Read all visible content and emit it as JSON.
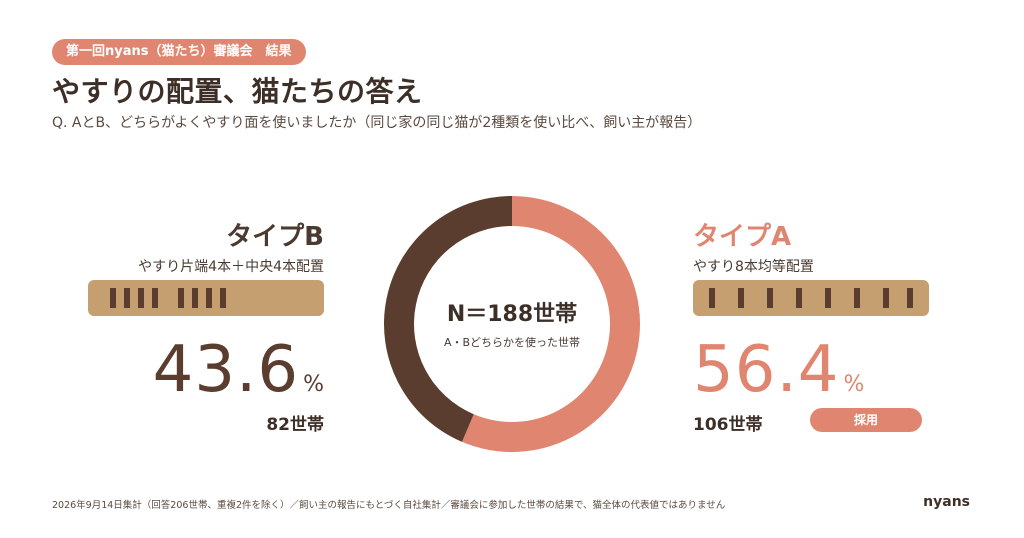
{
  "header": {
    "badge": "第一回nyans（猫たち）審議会　結果",
    "title": "やすりの配置、猫たちの答え",
    "subtitle": "Q. AとB、どちらがよくやすり面を使いましたか（同じ家の同じ猫が2種類を使い比べ、飼い主が報告）"
  },
  "type_b": {
    "title": "タイプB",
    "desc": "やすり片端4本＋中央4本配置",
    "percent": "43.6",
    "unit": "%",
    "households": "82世帯"
  },
  "type_a": {
    "title": "タイプA",
    "desc": "やすり8本均等配置",
    "percent": "56.4",
    "unit": "%",
    "households": "106世帯",
    "badge": "採用"
  },
  "center": {
    "main": "N＝188世帯",
    "sub": "A・Bどちらかを使った世帯"
  },
  "footer": {
    "note": "2026年9月14日集計（回答206世帯、重複2件を除く）／飼い主の報告にもとづく自社集計／審議会に参加した世帯の結果で、猫全体の代表値ではありません",
    "brand": "nyans"
  },
  "colors": {
    "accent": "#e08670",
    "dark": "#5a3d2e",
    "rail": "#c59f70"
  },
  "chart_data": {
    "type": "pie",
    "title": "",
    "total": 188,
    "series": [
      {
        "name": "タイプA",
        "values": [
          106
        ],
        "percent": 56.4,
        "color": "#e08670"
      },
      {
        "name": "タイプB",
        "values": [
          82
        ],
        "percent": 43.6,
        "color": "#5a3d2e"
      }
    ]
  }
}
